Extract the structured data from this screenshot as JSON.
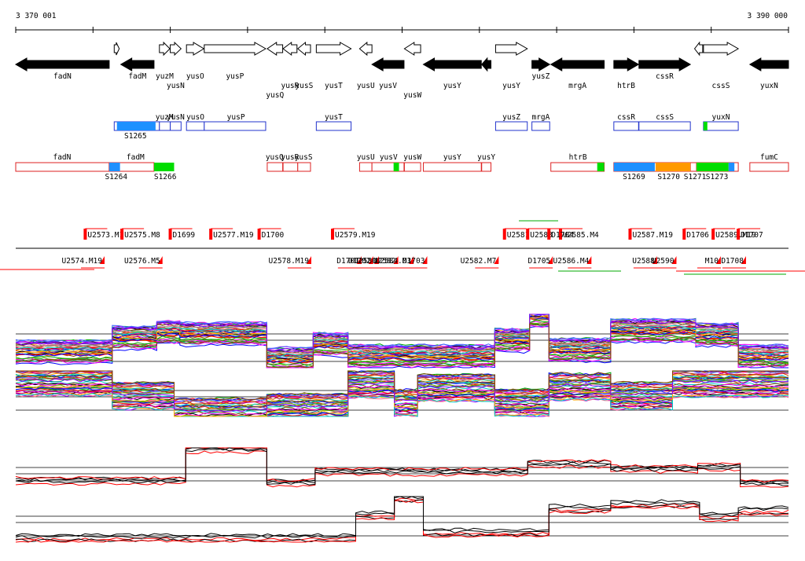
{
  "coords": {
    "start": "3 370 001",
    "end": "3 390 000"
  },
  "range": [
    3370001,
    3390000
  ],
  "genes": [
    {
      "id": "fadN",
      "s": 3370001,
      "e": 3372420,
      "str": "-",
      "fill": true,
      "lbl": "below"
    },
    {
      "id": "t1",
      "s": 3372550,
      "e": 3372680,
      "str": "+",
      "fill": false,
      "lbl": "none"
    },
    {
      "id": "fadM",
      "s": 3372720,
      "e": 3373580,
      "str": "-",
      "fill": true,
      "lbl": "below"
    },
    {
      "id": "yuzM",
      "s": 3373720,
      "e": 3373990,
      "str": "+",
      "fill": false,
      "lbl": "below"
    },
    {
      "id": "yusN",
      "s": 3374000,
      "e": 3374280,
      "str": "+",
      "fill": false,
      "lbl": "below2"
    },
    {
      "id": "yusO",
      "s": 3374420,
      "e": 3374870,
      "str": "+",
      "fill": false,
      "lbl": "below"
    },
    {
      "id": "yusP",
      "s": 3374880,
      "e": 3376470,
      "str": "+",
      "fill": false,
      "lbl": "below"
    },
    {
      "id": "yusQ",
      "s": 3376510,
      "e": 3376910,
      "str": "-",
      "fill": false,
      "lbl": "below3"
    },
    {
      "id": "yusR",
      "s": 3376920,
      "e": 3377280,
      "str": "-",
      "fill": false,
      "lbl": "below2"
    },
    {
      "id": "yusS",
      "s": 3377300,
      "e": 3377630,
      "str": "-",
      "fill": false,
      "lbl": "below2b"
    },
    {
      "id": "yusT",
      "s": 3377780,
      "e": 3378680,
      "str": "+",
      "fill": false,
      "lbl": "below2"
    },
    {
      "id": "yusU",
      "s": 3378900,
      "e": 3379220,
      "str": "-",
      "fill": false,
      "lbl": "below2"
    },
    {
      "id": "yusV",
      "s": 3379220,
      "e": 3380050,
      "str": "-",
      "fill": true,
      "lbl": "below2b"
    },
    {
      "id": "yusW",
      "s": 3380060,
      "e": 3380480,
      "str": "-",
      "fill": false,
      "lbl": "below3"
    },
    {
      "id": "yusY",
      "s": 3380550,
      "e": 3382050,
      "str": "-",
      "fill": true,
      "lbl": "below2"
    },
    {
      "id": "yusY2",
      "s": 3382060,
      "e": 3382300,
      "str": "-",
      "fill": true,
      "lbl": "none"
    },
    {
      "id": "yusZ",
      "s": 3382420,
      "e": 3383240,
      "str": "+",
      "fill": false,
      "lbl": "below2"
    },
    {
      "id": "mrgA",
      "s": 3383360,
      "e": 3383820,
      "str": "+",
      "fill": true,
      "lbl": "below"
    },
    {
      "id": "htrB",
      "s": 3383850,
      "e": 3385230,
      "str": "-",
      "fill": true,
      "lbl": "below2b"
    },
    {
      "id": "cssR",
      "s": 3385480,
      "e": 3386120,
      "str": "+",
      "fill": true,
      "lbl": "below2"
    },
    {
      "id": "cssS",
      "s": 3386130,
      "e": 3387460,
      "str": "+",
      "fill": true,
      "lbl": "below"
    },
    {
      "id": "t2",
      "s": 3387570,
      "e": 3387780,
      "str": "-",
      "fill": false,
      "lbl": "none"
    },
    {
      "id": "yuxN",
      "s": 3387800,
      "e": 3388700,
      "str": "+",
      "fill": false,
      "lbl": "below2"
    },
    {
      "id": "fumC",
      "s": 3389000,
      "e": 3390000,
      "str": "-",
      "fill": true,
      "lbl": "below2"
    }
  ],
  "gene_labels": [
    "fadN",
    "fadM",
    "yuzM",
    "yusN",
    "yusO",
    "yusP",
    "yusQ",
    "yusR",
    "yusS",
    "yusT",
    "yusU",
    "yusV",
    "yusW",
    "yusY",
    "yusY",
    "yusZ",
    "mrgA",
    "htrB",
    "cssR",
    "cssS",
    "yuxN",
    "fumC"
  ],
  "blue_track": {
    "labels": [
      "yuzM",
      "yusN",
      "yusO",
      "yusP",
      "yusT",
      "yusZ",
      "mrgA",
      "cssR",
      "cssS",
      "yuxN",
      "S1265"
    ],
    "boxes": [
      [
        3372550,
        3373720
      ],
      [
        3373720,
        3374000
      ],
      [
        3374000,
        3374280
      ],
      [
        3374420,
        3374880
      ],
      [
        3374880,
        3376470
      ],
      [
        3377780,
        3378680
      ],
      [
        3382420,
        3383240
      ],
      [
        3383360,
        3383820
      ],
      [
        3385480,
        3386120
      ],
      [
        3386130,
        3387460
      ],
      [
        3387800,
        3388700
      ]
    ],
    "fills": [
      {
        "s": 3372620,
        "e": 3373620,
        "c": "#1e90ff"
      },
      {
        "s": 3387800,
        "e": 3387900,
        "c": "#00dd00"
      }
    ]
  },
  "red_track": {
    "labels": [
      "fadN",
      "fadM",
      "yusQ",
      "yusR",
      "yusS",
      "yusU",
      "yusV",
      "yusW",
      "yusY",
      "yusY",
      "htrB",
      "fumC",
      "S1264",
      "S1266",
      "S1269",
      "S1270",
      "S1271",
      "S1273"
    ],
    "boxes": [
      [
        3370001,
        3372420
      ],
      [
        3372420,
        3373580
      ],
      [
        3376510,
        3376910
      ],
      [
        3376920,
        3377300
      ],
      [
        3377300,
        3377630
      ],
      [
        3378900,
        3379220
      ],
      [
        3379220,
        3380050
      ],
      [
        3380060,
        3380480
      ],
      [
        3380550,
        3382050
      ],
      [
        3382060,
        3382300
      ],
      [
        3383850,
        3385230
      ],
      [
        3385480,
        3386120
      ],
      [
        3386130,
        3387460
      ],
      [
        3387460,
        3387620
      ],
      [
        3387620,
        3388700
      ],
      [
        3389000,
        3390000
      ]
    ],
    "fills": [
      {
        "s": 3372420,
        "e": 3372700,
        "c": "#1e90ff"
      },
      {
        "s": 3373580,
        "e": 3374100,
        "c": "#00dd00"
      },
      {
        "s": 3379780,
        "e": 3379920,
        "c": "#00dd00"
      },
      {
        "s": 3385050,
        "e": 3385230,
        "c": "#00dd00"
      },
      {
        "s": 3385480,
        "e": 3386540,
        "c": "#1e90ff"
      },
      {
        "s": 3386560,
        "e": 3387460,
        "c": "#ff9900"
      },
      {
        "s": 3387620,
        "e": 3388450,
        "c": "#00dd00"
      },
      {
        "s": 3388450,
        "e": 3388600,
        "c": "#1e90ff"
      }
    ]
  },
  "segments": {
    "labels_top": [
      "U2573.M1",
      "U2575.M8",
      "D1699",
      "U2577.M19",
      "D1700",
      "U2579.M19",
      "U2581",
      "U2583",
      "U2585.M4",
      "D1704",
      "U2587.M19",
      "D1706",
      "U2589.M19",
      "D1707"
    ],
    "labels_bottom": [
      "U2574.M19",
      "U2576.M5",
      "U2578.M19",
      "D1701",
      "D1702",
      "U2580",
      "U2582",
      "U2584.M3",
      "D1703",
      "U2582.M7",
      "D1705",
      "U2586.M4",
      "U2588",
      "U2590",
      "D1708",
      "M10"
    ]
  },
  "expression": {
    "colors": [
      "#ff0000",
      "#00aa00",
      "#0000ff",
      "#ff00ff",
      "#00cccc",
      "#ffaa00",
      "#8800ff",
      "#884400",
      "#008888",
      "#aa0066",
      "#66aa00",
      "#ff6688",
      "#000000",
      "#999999",
      "#4466ff",
      "#cc4400"
    ],
    "upper": [
      {
        "s": 3370001,
        "e": 3372500,
        "v": 0.28
      },
      {
        "s": 3372500,
        "e": 3373650,
        "v": 0.55
      },
      {
        "s": 3373650,
        "e": 3374250,
        "v": 0.65
      },
      {
        "s": 3374250,
        "e": 3376500,
        "v": 0.62
      },
      {
        "s": 3376500,
        "e": 3377700,
        "v": 0.15
      },
      {
        "s": 3377700,
        "e": 3378600,
        "v": 0.42
      },
      {
        "s": 3378600,
        "e": 3382400,
        "v": 0.2
      },
      {
        "s": 3382400,
        "e": 3383300,
        "v": 0.5
      },
      {
        "s": 3383300,
        "e": 3383800,
        "v": 0.95
      },
      {
        "s": 3383800,
        "e": 3385400,
        "v": 0.32
      },
      {
        "s": 3385400,
        "e": 3387600,
        "v": 0.68
      },
      {
        "s": 3387600,
        "e": 3388700,
        "v": 0.6
      },
      {
        "s": 3388700,
        "e": 3390000,
        "v": 0.2
      }
    ],
    "lower": [
      {
        "s": 3370001,
        "e": 3372500,
        "v": 0.75
      },
      {
        "s": 3372500,
        "e": 3374100,
        "v": 0.45
      },
      {
        "s": 3374100,
        "e": 3376500,
        "v": 0.1
      },
      {
        "s": 3376500,
        "e": 3378600,
        "v": 0.2
      },
      {
        "s": 3378600,
        "e": 3379800,
        "v": 0.7
      },
      {
        "s": 3379800,
        "e": 3380400,
        "v": 0.3
      },
      {
        "s": 3380400,
        "e": 3382400,
        "v": 0.62
      },
      {
        "s": 3382400,
        "e": 3383800,
        "v": 0.3
      },
      {
        "s": 3383800,
        "e": 3385400,
        "v": 0.65
      },
      {
        "s": 3385400,
        "e": 3387000,
        "v": 0.45
      },
      {
        "s": 3387000,
        "e": 3390000,
        "v": 0.72
      }
    ],
    "sum_upper": [
      {
        "s": 3370001,
        "e": 3374400,
        "v": 0.15
      },
      {
        "s": 3374400,
        "e": 3376500,
        "v": 0.95
      },
      {
        "s": 3376500,
        "e": 3377750,
        "v": 0.1
      },
      {
        "s": 3377750,
        "e": 3383250,
        "v": 0.38
      },
      {
        "s": 3383250,
        "e": 3385400,
        "v": 0.58
      },
      {
        "s": 3385400,
        "e": 3387650,
        "v": 0.45
      },
      {
        "s": 3387650,
        "e": 3388750,
        "v": 0.5
      },
      {
        "s": 3388750,
        "e": 3390000,
        "v": 0.08
      }
    ],
    "sum_lower": [
      {
        "s": 3370001,
        "e": 3378800,
        "v": 0.08
      },
      {
        "s": 3378800,
        "e": 3379800,
        "v": 0.58
      },
      {
        "s": 3379800,
        "e": 3380550,
        "v": 0.95
      },
      {
        "s": 3380550,
        "e": 3383800,
        "v": 0.2
      },
      {
        "s": 3383800,
        "e": 3385400,
        "v": 0.72
      },
      {
        "s": 3385400,
        "e": 3387700,
        "v": 0.82
      },
      {
        "s": 3387700,
        "e": 3388700,
        "v": 0.55
      },
      {
        "s": 3388700,
        "e": 3390000,
        "v": 0.68
      }
    ]
  }
}
